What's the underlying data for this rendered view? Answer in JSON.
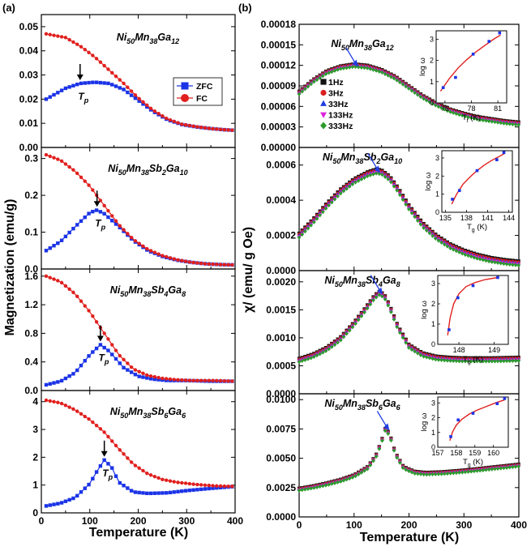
{
  "panel_labels": [
    "(a)",
    "(b)"
  ],
  "colors": {
    "zfc": "#1a33e6",
    "fc": "#e0201e",
    "f1": "#111111",
    "f3": "#d9201d",
    "f33": "#1f3ce0",
    "f133": "#dd22dd",
    "f333": "#2c9a2c",
    "fit": "#e0201e",
    "inset_pts": "#1a33e6"
  },
  "chart_data": [
    {
      "type": "line",
      "id": "a1",
      "title": "Ni50Mn38Ga12",
      "composition": [
        [
          "Ni",
          "50"
        ],
        [
          "Mn",
          "38"
        ],
        [
          "Ga",
          "12"
        ]
      ],
      "xlabel": "",
      "ylabel": "",
      "xlim": [
        0,
        400
      ],
      "ylim": [
        0.0,
        0.055
      ],
      "yticks": [
        "0.00",
        "0.01",
        "0.02",
        "0.03",
        "0.04",
        "0.05"
      ],
      "xticks": [
        "0",
        "100",
        "200",
        "300",
        "400"
      ],
      "show_xtick_labels": false,
      "legend": {
        "position": "right",
        "entries": [
          "ZFC",
          "FC"
        ]
      },
      "annotation": {
        "text": "Tp",
        "at_x": 80,
        "arrow": "down"
      },
      "series": [
        {
          "name": "ZFC",
          "marker": "square",
          "x": [
            10,
            50,
            80,
            110,
            140,
            170,
            200,
            230,
            260,
            290,
            320,
            350,
            380,
            400
          ],
          "y": [
            0.02,
            0.0245,
            0.0265,
            0.027,
            0.0265,
            0.024,
            0.0195,
            0.015,
            0.0115,
            0.0095,
            0.0085,
            0.0078,
            0.0073,
            0.0071
          ]
        },
        {
          "name": "FC",
          "marker": "circle",
          "x": [
            10,
            50,
            80,
            110,
            140,
            170,
            200,
            230,
            260,
            290,
            320,
            350,
            380,
            400
          ],
          "y": [
            0.047,
            0.0455,
            0.042,
            0.0375,
            0.032,
            0.0265,
            0.0205,
            0.0155,
            0.0118,
            0.0096,
            0.0086,
            0.0078,
            0.0073,
            0.0071
          ]
        }
      ]
    },
    {
      "type": "line",
      "id": "a2",
      "title": "Ni50Mn38Sb2Ga10",
      "composition": [
        [
          "Ni",
          "50"
        ],
        [
          "Mn",
          "38"
        ],
        [
          "Sb",
          "2"
        ],
        [
          "Ga",
          "10"
        ]
      ],
      "xlim": [
        0,
        400
      ],
      "ylim": [
        0.0,
        0.33
      ],
      "yticks": [
        "0.0",
        "0.1",
        "0.2",
        "0.3"
      ],
      "xticks": [
        "0",
        "100",
        "200",
        "300",
        "400"
      ],
      "show_xtick_labels": false,
      "annotation": {
        "text": "Tp",
        "at_x": 115,
        "arrow": "down"
      },
      "series": [
        {
          "name": "ZFC",
          "marker": "square",
          "x": [
            10,
            40,
            70,
            100,
            115,
            130,
            160,
            190,
            220,
            250,
            280,
            310,
            340,
            370,
            400
          ],
          "y": [
            0.05,
            0.075,
            0.115,
            0.153,
            0.16,
            0.15,
            0.115,
            0.077,
            0.05,
            0.034,
            0.024,
            0.018,
            0.014,
            0.012,
            0.011
          ]
        },
        {
          "name": "FC",
          "marker": "circle",
          "x": [
            10,
            40,
            70,
            100,
            130,
            160,
            190,
            220,
            250,
            280,
            310,
            340,
            370,
            400
          ],
          "y": [
            0.31,
            0.295,
            0.265,
            0.225,
            0.172,
            0.12,
            0.08,
            0.053,
            0.036,
            0.025,
            0.018,
            0.014,
            0.012,
            0.011
          ]
        }
      ]
    },
    {
      "type": "line",
      "id": "a3",
      "title": "Ni50Mn38Sb4Ga8",
      "composition": [
        [
          "Ni",
          "50"
        ],
        [
          "Mn",
          "38"
        ],
        [
          "Sb",
          "4"
        ],
        [
          "Ga",
          "8"
        ]
      ],
      "ylabel": "Magnetization (emu/g)",
      "xlim": [
        0,
        400
      ],
      "ylim": [
        0.0,
        1.7
      ],
      "yticks": [
        "0.0",
        "0.4",
        "0.8",
        "1.2",
        "1.6"
      ],
      "xticks": [
        "0",
        "100",
        "200",
        "300",
        "400"
      ],
      "show_xtick_labels": false,
      "annotation": {
        "text": "Tp",
        "at_x": 122,
        "arrow": "down"
      },
      "series": [
        {
          "name": "ZFC",
          "marker": "square",
          "x": [
            10,
            40,
            70,
            100,
            122,
            140,
            170,
            200,
            230,
            260,
            300,
            350,
            400
          ],
          "y": [
            0.08,
            0.13,
            0.25,
            0.5,
            0.64,
            0.55,
            0.32,
            0.2,
            0.16,
            0.14,
            0.14,
            0.13,
            0.13
          ]
        },
        {
          "name": "FC",
          "marker": "circle",
          "x": [
            10,
            40,
            70,
            100,
            130,
            160,
            190,
            220,
            250,
            280,
            310,
            350,
            400
          ],
          "y": [
            1.6,
            1.52,
            1.35,
            1.1,
            0.8,
            0.5,
            0.3,
            0.21,
            0.17,
            0.15,
            0.14,
            0.14,
            0.13
          ]
        }
      ]
    },
    {
      "type": "line",
      "id": "a4",
      "title": "Ni50Mn38Sb6Ga6",
      "composition": [
        [
          "Ni",
          "50"
        ],
        [
          "Mn",
          "38"
        ],
        [
          "Sb",
          "6"
        ],
        [
          "Ga",
          "6"
        ]
      ],
      "xlabel": "Temperature (K)",
      "xlim": [
        0,
        400
      ],
      "ylim": [
        0,
        4.4
      ],
      "yticks": [
        "0",
        "1",
        "2",
        "3",
        "4"
      ],
      "xticks": [
        "0",
        "100",
        "200",
        "300",
        "400"
      ],
      "show_xtick_labels": true,
      "annotation": {
        "text": "Tp",
        "at_x": 130,
        "arrow": "down"
      },
      "series": [
        {
          "name": "ZFC",
          "marker": "square",
          "x": [
            10,
            40,
            70,
            100,
            115,
            130,
            145,
            160,
            190,
            220,
            260,
            300,
            350,
            400
          ],
          "y": [
            0.25,
            0.35,
            0.55,
            1.05,
            1.5,
            1.9,
            1.65,
            1.1,
            0.75,
            0.7,
            0.72,
            0.8,
            0.88,
            0.95
          ]
        },
        {
          "name": "FC",
          "marker": "circle",
          "x": [
            10,
            40,
            70,
            100,
            130,
            160,
            190,
            220,
            250,
            280,
            320,
            360,
            400
          ],
          "y": [
            4.05,
            3.95,
            3.7,
            3.35,
            2.9,
            2.3,
            1.75,
            1.4,
            1.2,
            1.1,
            1.02,
            0.97,
            0.95
          ]
        }
      ]
    },
    {
      "type": "line",
      "id": "b1",
      "title": "Ni50Mn38Ga12",
      "composition": [
        [
          "Ni",
          "50"
        ],
        [
          "Mn",
          "38"
        ],
        [
          "Ga",
          "12"
        ]
      ],
      "xlim": [
        0,
        400
      ],
      "ylim": [
        0,
        0.00018
      ],
      "yticks": [
        "0.00000",
        "0.00003",
        "0.00006",
        "0.00009",
        "0.00012",
        "0.00015",
        "0.00018"
      ],
      "xticks": [
        "0",
        "100",
        "200",
        "300",
        "400"
      ],
      "show_xtick_labels": false,
      "legend": {
        "position": "left",
        "entries": [
          "1Hz",
          "3Hz",
          "33Hz",
          "133Hz",
          "333Hz"
        ]
      },
      "base_curve": {
        "x": [
          0,
          25,
          50,
          75,
          100,
          125,
          150,
          175,
          200,
          225,
          250,
          275,
          300,
          325,
          350,
          375,
          400
        ],
        "y": [
          8e-05,
          9.7e-05,
          0.00011,
          0.000117,
          0.00012,
          0.000118,
          0.000112,
          0.000102,
          8.8e-05,
          7.4e-05,
          6.3e-05,
          5.4e-05,
          4.8e-05,
          4.3e-05,
          4e-05,
          3.7e-05,
          3.5e-05
        ]
      },
      "series_offsets": [
        {
          "name": "1Hz",
          "value": 2e-06
        },
        {
          "name": "3Hz",
          "value": 1e-06
        },
        {
          "name": "33Hz",
          "value": 0.0
        },
        {
          "name": "133Hz",
          "value": -1e-06
        },
        {
          "name": "333Hz",
          "value": -2e-06
        }
      ],
      "inset": {
        "xlabel": "Tf (K)",
        "ylabel": "log ω",
        "xlim": [
          74,
          82
        ],
        "ylim": [
          0,
          3.4
        ],
        "xticks": [
          "75",
          "78",
          "81"
        ],
        "yticks": [
          "0",
          "1",
          "2",
          "3"
        ],
        "points_x": [
          74.8,
          76.2,
          78.2,
          80.0,
          81.2
        ],
        "points_y": [
          0.72,
          1.2,
          2.3,
          2.9,
          3.3
        ],
        "fit_x": [
          74.5,
          75.5,
          76.5,
          77.5,
          78.5,
          79.5,
          80.5,
          81.3
        ],
        "fit_y": [
          0.55,
          1.15,
          1.65,
          2.05,
          2.4,
          2.7,
          3.0,
          3.2
        ]
      }
    },
    {
      "type": "line",
      "id": "b2",
      "title": "Ni50Mn38Sb2Ga10",
      "composition": [
        [
          "Ni",
          "50"
        ],
        [
          "Mn",
          "38"
        ],
        [
          "Sb",
          "2"
        ],
        [
          "Ga",
          "10"
        ]
      ],
      "xlim": [
        0,
        400
      ],
      "ylim": [
        0,
        0.0007
      ],
      "yticks": [
        "0.0000",
        "0.0002",
        "0.0004",
        "0.0006"
      ],
      "xticks": [
        "0",
        "100",
        "200",
        "300",
        "400"
      ],
      "show_xtick_labels": false,
      "base_curve": {
        "x": [
          0,
          25,
          50,
          75,
          100,
          125,
          140,
          150,
          165,
          180,
          200,
          225,
          250,
          275,
          300,
          325,
          350,
          375,
          400
        ],
        "y": [
          0.0002,
          0.00028,
          0.00037,
          0.00045,
          0.00051,
          0.00055,
          0.000565,
          0.00056,
          0.000525,
          0.00046,
          0.00036,
          0.00026,
          0.00019,
          0.00014,
          0.000105,
          8e-05,
          6.2e-05,
          5e-05,
          4.2e-05
        ]
      },
      "series_offsets": [
        {
          "name": "1Hz",
          "value": 1.2e-05
        },
        {
          "name": "3Hz",
          "value": 6e-06
        },
        {
          "name": "33Hz",
          "value": 0.0
        },
        {
          "name": "133Hz",
          "value": -6e-06
        },
        {
          "name": "333Hz",
          "value": -1.2e-05
        }
      ],
      "inset": {
        "xlabel": "Tg (K)",
        "ylabel": "log ω",
        "xlim": [
          134.5,
          144.5
        ],
        "ylim": [
          0,
          3.4
        ],
        "xticks": [
          "135",
          "138",
          "141",
          "144"
        ],
        "yticks": [
          "0",
          "1",
          "2",
          "3"
        ],
        "points_x": [
          136.0,
          137.0,
          139.5,
          142.3,
          143.3
        ],
        "points_y": [
          0.72,
          1.2,
          2.3,
          2.9,
          3.3
        ],
        "fit_x": [
          135.9,
          136.6,
          137.5,
          138.5,
          139.5,
          140.5,
          141.5,
          142.5,
          143.4
        ],
        "fit_y": [
          0.45,
          1.0,
          1.55,
          1.95,
          2.3,
          2.6,
          2.85,
          3.05,
          3.25
        ]
      }
    },
    {
      "type": "line",
      "id": "b3",
      "title": "Ni50Mn38Sb4Ga8",
      "composition": [
        [
          "Ni",
          "50"
        ],
        [
          "Mn",
          "38"
        ],
        [
          "Sb",
          "4"
        ],
        [
          "Ga",
          "8"
        ]
      ],
      "xlim": [
        0,
        400
      ],
      "ylim": [
        0,
        0.0022
      ],
      "yticks": [
        "0.0000",
        "0.0005",
        "0.0010",
        "0.0015",
        "0.0020"
      ],
      "xticks": [
        "0",
        "100",
        "200",
        "300",
        "400"
      ],
      "show_xtick_labels": false,
      "base_curve": {
        "x": [
          0,
          25,
          50,
          75,
          100,
          120,
          135,
          145,
          155,
          165,
          180,
          200,
          225,
          250,
          275,
          300,
          350,
          400
        ],
        "y": [
          0.0006,
          0.00068,
          0.0008,
          0.00098,
          0.00125,
          0.0015,
          0.0017,
          0.0018,
          0.00175,
          0.00155,
          0.00118,
          0.00085,
          0.0007,
          0.00064,
          0.00062,
          0.00061,
          0.00061,
          0.00062
        ]
      },
      "series_offsets": [
        {
          "name": "1Hz",
          "value": 3e-05
        },
        {
          "name": "3Hz",
          "value": 1.5e-05
        },
        {
          "name": "33Hz",
          "value": 0.0
        },
        {
          "name": "133Hz",
          "value": -1.5e-05
        },
        {
          "name": "333Hz",
          "value": -3e-05
        }
      ],
      "inset": {
        "xlabel": "Tg (K)",
        "ylabel": "log ω",
        "xlim": [
          147.4,
          149.4
        ],
        "ylim": [
          0,
          3.4
        ],
        "xticks": [
          "148",
          "149"
        ],
        "yticks": [
          "0",
          "1",
          "2",
          "3"
        ],
        "points_x": [
          147.72,
          147.97,
          148.4,
          149.1
        ],
        "points_y": [
          0.72,
          2.3,
          2.9,
          3.3
        ],
        "fit_x": [
          147.68,
          147.75,
          147.85,
          148.0,
          148.2,
          148.45,
          148.75,
          149.1
        ],
        "fit_y": [
          0.45,
          1.3,
          2.0,
          2.5,
          2.85,
          3.05,
          3.2,
          3.3
        ]
      }
    },
    {
      "type": "line",
      "id": "b4",
      "title": "Ni50Mn38Sb6Ga6",
      "composition": [
        [
          "Ni",
          "50"
        ],
        [
          "Mn",
          "38"
        ],
        [
          "Sb",
          "6"
        ],
        [
          "Ga",
          "6"
        ]
      ],
      "xlabel": "Temperature (K)",
      "xlim": [
        0,
        400
      ],
      "ylim": [
        0,
        0.0105
      ],
      "yticks": [
        "0.0000",
        "0.0025",
        "0.0050",
        "0.0075",
        "0.0100"
      ],
      "xticks": [
        "0",
        "100",
        "200",
        "300",
        "400"
      ],
      "show_xtick_labels": true,
      "base_curve": {
        "x": [
          0,
          25,
          50,
          75,
          100,
          125,
          140,
          150,
          157,
          165,
          175,
          190,
          210,
          230,
          260,
          300,
          350,
          400
        ],
        "y": [
          0.00235,
          0.00255,
          0.0028,
          0.0031,
          0.0035,
          0.0042,
          0.0052,
          0.0064,
          0.0075,
          0.007,
          0.0054,
          0.0042,
          0.0038,
          0.0037,
          0.00375,
          0.0039,
          0.00415,
          0.0044
        ]
      },
      "series_offsets": [
        {
          "name": "1Hz",
          "value": 9e-05
        },
        {
          "name": "3Hz",
          "value": 4.5e-05
        },
        {
          "name": "33Hz",
          "value": 0.0
        },
        {
          "name": "133Hz",
          "value": -4.5e-05
        },
        {
          "name": "333Hz",
          "value": -9e-05
        }
      ],
      "inset": {
        "xlabel": "Tg (K)",
        "ylabel": "log ω",
        "xlim": [
          157,
          160.8
        ],
        "ylim": [
          0,
          3.4
        ],
        "xticks": [
          "157",
          "158",
          "159",
          "160"
        ],
        "yticks": [
          "0",
          "1",
          "2",
          "3"
        ],
        "points_x": [
          157.7,
          158.1,
          158.9,
          160.2,
          160.6
        ],
        "points_y": [
          0.72,
          1.85,
          2.3,
          2.95,
          3.3
        ],
        "fit_x": [
          157.65,
          157.8,
          158.0,
          158.3,
          158.7,
          159.1,
          159.6,
          160.1,
          160.6
        ],
        "fit_y": [
          0.45,
          1.05,
          1.5,
          1.9,
          2.25,
          2.5,
          2.75,
          3.0,
          3.2
        ]
      }
    }
  ],
  "axis_labels": {
    "left_y": "Magnetization (emu/g)",
    "right_y": "χ/ (emu/ g Oe)",
    "left_x": "Temperature (K)",
    "right_x": "Temperature (K)"
  }
}
